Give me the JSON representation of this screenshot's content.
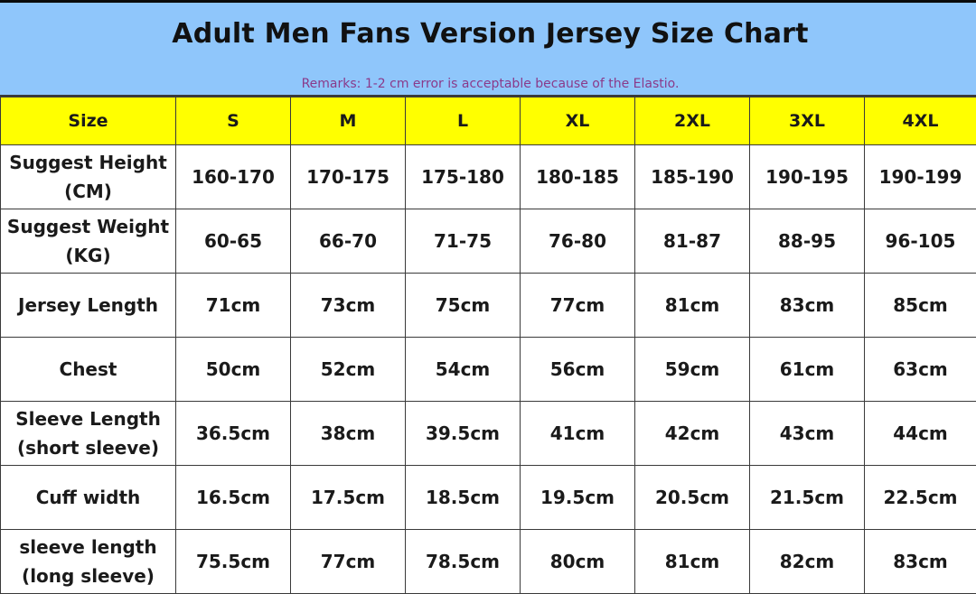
{
  "header": {
    "title": "Adult Men Fans Version Jersey Size Chart",
    "remarks": "Remarks: 1-2 cm error is acceptable because of the Elastio.",
    "background_color": "#8fc6fb",
    "title_color": "#111111",
    "remarks_color": "#8a3a8a"
  },
  "table": {
    "header_color": "#ffff00",
    "corner_label": "Size",
    "sizes": [
      "S",
      "M",
      "L",
      "XL",
      "2XL",
      "3XL",
      "4XL"
    ],
    "rows": [
      {
        "label_line1": "Suggest Height",
        "label_line2": "(CM)",
        "values": [
          "160-170",
          "170-175",
          "175-180",
          "180-185",
          "185-190",
          "190-195",
          "190-199"
        ]
      },
      {
        "label_line1": "Suggest Weight",
        "label_line2": "(KG)",
        "values": [
          "60-65",
          "66-70",
          "71-75",
          "76-80",
          "81-87",
          "88-95",
          "96-105"
        ]
      },
      {
        "label_line1": "Jersey Length",
        "label_line2": "",
        "values": [
          "71cm",
          "73cm",
          "75cm",
          "77cm",
          "81cm",
          "83cm",
          "85cm"
        ]
      },
      {
        "label_line1": "Chest",
        "label_line2": "",
        "values": [
          "50cm",
          "52cm",
          "54cm",
          "56cm",
          "59cm",
          "61cm",
          "63cm"
        ]
      },
      {
        "label_line1": "Sleeve Length",
        "label_line2": "(short sleeve)",
        "values": [
          "36.5cm",
          "38cm",
          "39.5cm",
          "41cm",
          "42cm",
          "43cm",
          "44cm"
        ]
      },
      {
        "label_line1": "Cuff width",
        "label_line2": "",
        "values": [
          "16.5cm",
          "17.5cm",
          "18.5cm",
          "19.5cm",
          "20.5cm",
          "21.5cm",
          "22.5cm"
        ]
      },
      {
        "label_line1": "sleeve length",
        "label_line2": "(long sleeve)",
        "values": [
          "75.5cm",
          "77cm",
          "78.5cm",
          "80cm",
          "81cm",
          "82cm",
          "83cm"
        ]
      }
    ]
  }
}
